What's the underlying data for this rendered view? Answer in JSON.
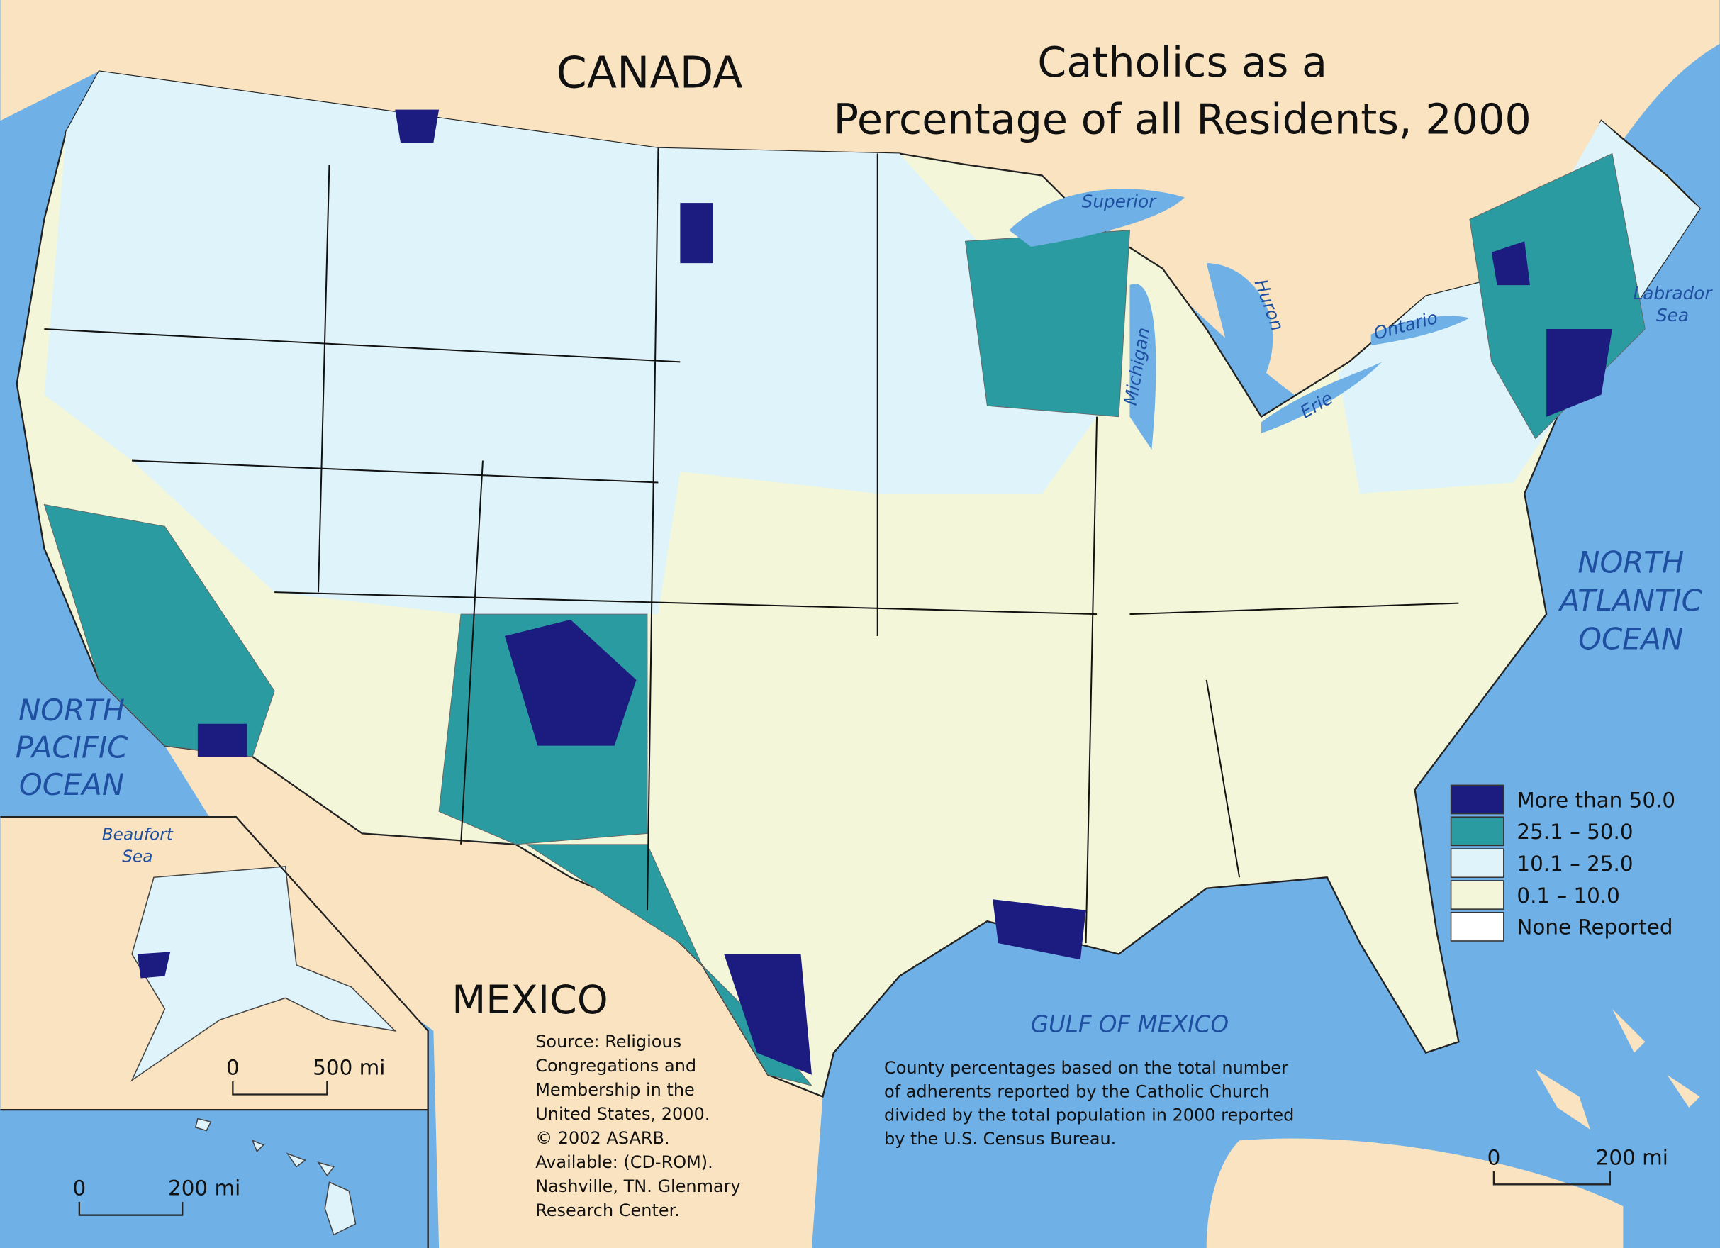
{
  "title": {
    "lines": [
      "Catholics as a",
      "Percentage of all Residents, 2000"
    ]
  },
  "places": {
    "canada": "CANADA",
    "mexico": "MEXICO"
  },
  "oceans": {
    "north_pacific": [
      "NORTH",
      "PACIFIC",
      "OCEAN"
    ],
    "north_atlantic": [
      "NORTH",
      "ATLANTIC",
      "OCEAN"
    ],
    "gulf": "GULF OF MEXICO",
    "labrador": [
      "Labrador",
      "Sea"
    ],
    "beaufort": [
      "Beaufort",
      "Sea"
    ]
  },
  "lakes": {
    "superior": "Superior",
    "huron": "Huron",
    "michigan": "Michigan",
    "ontario": "Ontario",
    "erie": "Erie"
  },
  "legend": {
    "items": [
      {
        "label": "More than 50.0",
        "color": "#1c1c80"
      },
      {
        "label": "25.1 – 50.0",
        "color": "#2a9ba0"
      },
      {
        "label": "10.1 – 25.0",
        "color": "#dff4fa"
      },
      {
        "label": "0.1 – 10.0",
        "color": "#f3f6d8"
      },
      {
        "label": "None Reported",
        "color": "#ffffff"
      }
    ]
  },
  "source": {
    "lines": [
      "Source:  Religious",
      "Congregations and",
      "Membership in the",
      "United States, 2000.",
      "© 2002 ASARB.",
      "Available: (CD-ROM).",
      "Nashville, TN. Glenmary",
      "Research Center."
    ]
  },
  "note": {
    "lines": [
      "County percentages based on the total number",
      "of adherents reported by the Catholic Church",
      "divided by the total population in 2000 reported",
      "by the U.S. Census Bureau."
    ]
  },
  "scale_bars": [
    {
      "start": "0",
      "end": "500 mi"
    },
    {
      "start": "0",
      "end": "200 mi"
    },
    {
      "start": "0",
      "end": "200 mi"
    }
  ]
}
